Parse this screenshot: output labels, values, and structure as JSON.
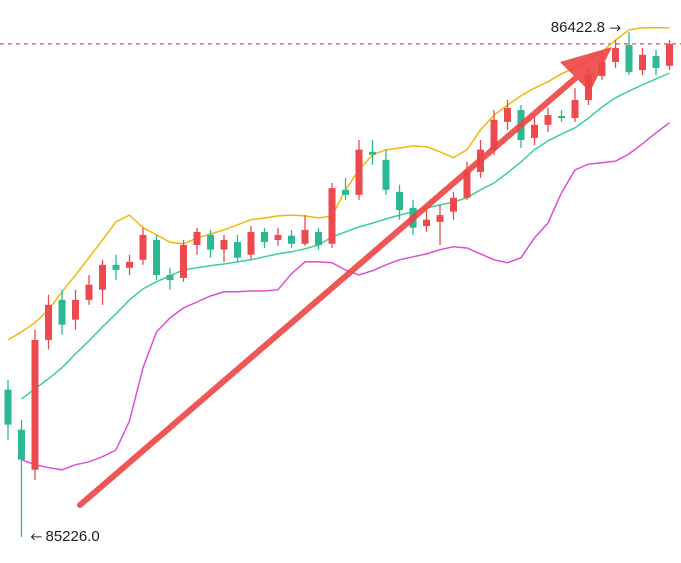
{
  "chart_data": {
    "type": "candlestick",
    "ylim": [
      85164,
      86499
    ],
    "up_color": "#ec4a4f",
    "down_color": "#2bb892",
    "open": [
      85575,
      85480,
      85385,
      85693,
      85788,
      85741,
      85788,
      85812,
      85871,
      85864,
      85883,
      85930,
      85847,
      85840,
      85918,
      85942,
      85907,
      85925,
      85895,
      85949,
      85930,
      85940,
      85921,
      85949,
      85921,
      86049,
      86037,
      86139,
      86120,
      86044,
      86006,
      85963,
      85973,
      85997,
      86030,
      86091,
      86144,
      86210,
      86238,
      86172,
      86203,
      86224,
      86219,
      86262,
      86319,
      86352,
      86392,
      86333,
      86366,
      86343
    ],
    "high": [
      85598,
      85504,
      85717,
      85800,
      85812,
      85812,
      85847,
      85883,
      85895,
      85895,
      85959,
      85942,
      85864,
      85930,
      85959,
      85954,
      85942,
      85942,
      85963,
      85959,
      85959,
      85954,
      85989,
      85959,
      86065,
      86077,
      86167,
      86167,
      86144,
      86061,
      86025,
      86001,
      86013,
      86044,
      86115,
      86167,
      86238,
      86262,
      86250,
      86226,
      86243,
      86238,
      86290,
      86338,
      86376,
      86404,
      86422.8,
      86385,
      86381,
      86404
    ],
    "low": [
      85456,
      85226.0,
      85361,
      85670,
      85705,
      85717,
      85776,
      85776,
      85835,
      85847,
      85871,
      85835,
      85812,
      85831,
      85895,
      85888,
      85878,
      85878,
      85883,
      85911,
      85916,
      85911,
      85916,
      85907,
      85911,
      86025,
      86025,
      86108,
      86037,
      85978,
      85942,
      85949,
      85918,
      85978,
      86025,
      86077,
      86132,
      86191,
      86148,
      86155,
      86186,
      86210,
      86210,
      86250,
      86309,
      86338,
      86321,
      86321,
      86321,
      86333
    ],
    "close": [
      85492,
      85409,
      85693,
      85776,
      85729,
      85788,
      85824,
      85871,
      85859,
      85878,
      85942,
      85847,
      85835,
      85918,
      85949,
      85907,
      85930,
      85888,
      85949,
      85925,
      85942,
      85921,
      85954,
      85918,
      86053,
      86037,
      86144,
      86132,
      86049,
      86001,
      85959,
      85978,
      85989,
      86030,
      86096,
      86144,
      86215,
      86243,
      86167,
      86203,
      86226,
      86219,
      86262,
      86321,
      86352,
      86385,
      86328,
      86369,
      86338,
      86395
    ],
    "overlays": [
      {
        "color": "#f0b90b",
        "values": [
          85693,
          85712,
          85734,
          85764,
          85807,
          85847,
          85888,
          85930,
          85973,
          85989,
          85959,
          85942,
          85925,
          85921,
          85935,
          85944,
          85954,
          85966,
          85978,
          85982,
          85987,
          85989,
          85987,
          85982,
          85987,
          86049,
          86096,
          86132,
          86144,
          86148,
          86153,
          86151,
          86139,
          86125,
          86144,
          86191,
          86226,
          86250,
          86272,
          86290,
          86305,
          86324,
          86338,
          86357,
          86376,
          86404,
          86428,
          86433,
          86433,
          86433
        ]
      },
      {
        "color": "#3dcf9c",
        "values": [
          null,
          85553,
          85577,
          85601,
          85627,
          85660,
          85691,
          85724,
          85755,
          85788,
          85814,
          85831,
          85845,
          85859,
          85864,
          85869,
          85873,
          85878,
          85883,
          85890,
          85897,
          85902,
          85909,
          85918,
          85937,
          85949,
          85961,
          85970,
          85980,
          85989,
          85997,
          86006,
          86013,
          86020,
          86030,
          86049,
          86065,
          86089,
          86115,
          86144,
          86165,
          86181,
          86196,
          86219,
          86245,
          86267,
          86283,
          86298,
          86312,
          86326
        ]
      },
      {
        "color": "#dc4fd4",
        "values": [
          null,
          85409,
          85397,
          85390,
          85385,
          85397,
          85404,
          85416,
          85432,
          85501,
          85627,
          85712,
          85745,
          85769,
          85783,
          85797,
          85807,
          85807,
          85809,
          85809,
          85812,
          85850,
          85878,
          85878,
          85876,
          85859,
          85847,
          85857,
          85871,
          85883,
          85890,
          85897,
          85907,
          85914,
          85911,
          85897,
          85883,
          85876,
          85888,
          85935,
          85970,
          86042,
          86096,
          86110,
          86113,
          86117,
          86134,
          86158,
          86184,
          86208
        ]
      }
    ],
    "max_label": {
      "value": 86422.8,
      "label": "86422.8"
    },
    "min_label": {
      "value": 85226.0,
      "label": "85226.0"
    }
  }
}
